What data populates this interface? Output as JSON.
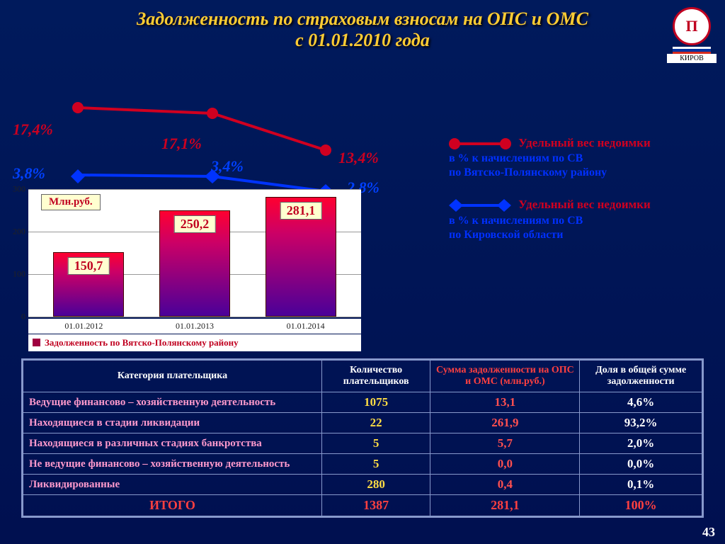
{
  "title_line1": "Задолженность по страховым взносам на ОПС и  ОМС",
  "title_line2": "с 01.01.2010 года",
  "logo_city": "КИРОВ",
  "flag_colors": [
    "#ffffff",
    "#0033a0",
    "#d52b1e"
  ],
  "line_red": {
    "color": "#d00020",
    "points_pct": [
      17.4,
      17.1,
      13.4
    ],
    "labels": [
      "17,4%",
      "17,1%",
      "13,4%"
    ],
    "legend_title": "Удельный вес недоимки",
    "legend_sub1": "в % к начислениям по СВ",
    "legend_sub2": "по Вятско-Полянскому району"
  },
  "line_blue": {
    "color": "#0033ff",
    "points_pct": [
      3.8,
      3.4,
      2.8
    ],
    "labels": [
      "3,8%",
      "3,4%",
      "2,8%"
    ],
    "legend_title": "Удельный вес недоимки",
    "legend_sub1": "в % к начислениям по СВ",
    "legend_sub2": "по Кировской области"
  },
  "bar_chart": {
    "unit_label": "Млн.руб.",
    "ylim": [
      0,
      300
    ],
    "yticks": [
      0,
      100,
      200,
      300
    ],
    "xlabels": [
      "01.01.2012",
      "01.01.2013",
      "01.01.2014"
    ],
    "values": [
      150.7,
      250.2,
      281.1
    ],
    "value_labels": [
      "150,7",
      "250,2",
      "281,1"
    ],
    "bar_gradient_top": "#ff0030",
    "bar_gradient_bottom": "#4a0099",
    "value_box_bg": "#ffffd0",
    "value_color": "#c00020",
    "legend": "Задолженность по Вятско-Полянскому району"
  },
  "table": {
    "headers": [
      "Категория плательщика",
      "Количество плательщиков",
      "Сумма задолженности на ОПС и ОМС (млн.руб.)",
      "Доля в общей сумме задолженности"
    ],
    "rows": [
      {
        "cat": "Ведущие финансово – хозяйственную деятельность",
        "count": "1075",
        "sum": "13,1",
        "share": "4,6%"
      },
      {
        "cat": "Находящиеся в стадии ликвидации",
        "count": "22",
        "sum": "261,9",
        "share": "93,2%"
      },
      {
        "cat": "Находящиеся в различных стадиях банкротства",
        "count": "5",
        "sum": "5,7",
        "share": "2,0%"
      },
      {
        "cat": "Не ведущие финансово – хозяйственную деятельность",
        "count": "5",
        "sum": "0,0",
        "share": "0,0%"
      },
      {
        "cat": "Ликвидированные",
        "count": "280",
        "sum": "0,4",
        "share": "0,1%"
      }
    ],
    "total": {
      "cat": "ИТОГО",
      "count": "1387",
      "sum": "281,1",
      "share": "100%"
    }
  },
  "page_number": "43",
  "colors": {
    "bg_top": "#001a5c",
    "bg_bottom": "#001050",
    "title": "#ffcc33",
    "grid": "#8899cc",
    "cat_text": "#ff99cc",
    "num_text": "#ffdd44",
    "red_text": "#ff5050",
    "white": "#ffffff"
  }
}
